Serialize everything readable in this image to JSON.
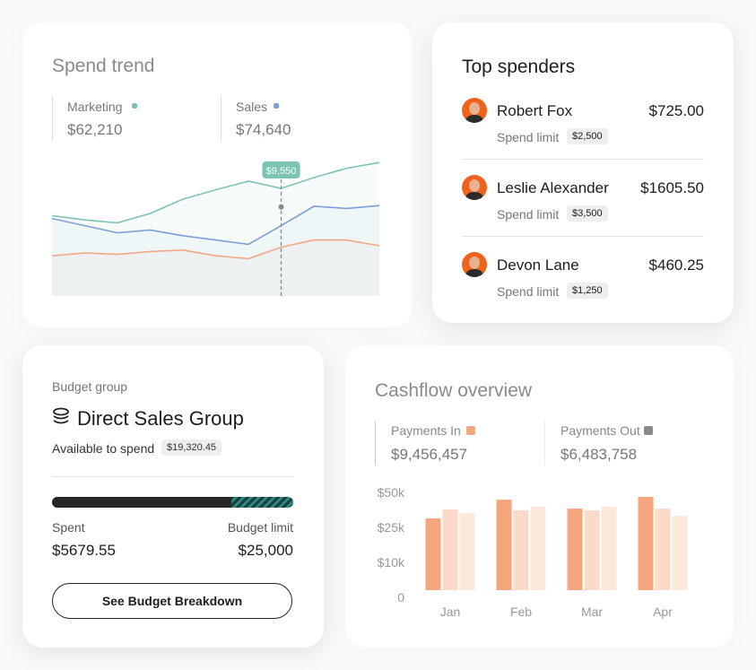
{
  "chart_data": [
    {
      "type": "line",
      "title": "Spend trend",
      "ylim": [
        0,
        100
      ],
      "series": [
        {
          "name": "Marketing",
          "total": "$62,210",
          "color": "#7cc4b2",
          "values": [
            56,
            53,
            51,
            57.5,
            67.5,
            74,
            80,
            75,
            82.5,
            89,
            93
          ]
        },
        {
          "name": "Sales",
          "total": "$74,640",
          "color": "#7c9fd6",
          "values": [
            54,
            49,
            44,
            46,
            42,
            39,
            36,
            49,
            62.5,
            61,
            63
          ]
        },
        {
          "color": "#f4a784",
          "values": [
            28,
            30,
            29,
            31,
            32,
            28,
            26,
            34,
            39,
            39,
            35
          ]
        }
      ],
      "annotations": [
        {
          "text": "$9,550",
          "x": 7
        }
      ]
    },
    {
      "type": "bar",
      "title": "Cashflow overview",
      "yscale": "tick-spaced",
      "categories": [
        "Jan",
        "Feb",
        "Mar",
        "Apr"
      ],
      "ylim": [
        0,
        50000
      ],
      "yticks": [
        0,
        {
          "value": 10000,
          "label": "$10k"
        },
        {
          "value": 25000,
          "label": "$25k"
        },
        {
          "value": 50000,
          "label": "$50k"
        }
      ],
      "series": [
        {
          "name": "Payments In",
          "total": "$9,456,457",
          "color": "#f6a67c",
          "key_color": "#f6a67c",
          "values": [
            26300,
            39700,
            33300,
            41700
          ]
        },
        {
          "name": "Payments Out",
          "total": "$6,483,758",
          "color": "#fbdac7",
          "key_color": "#8a8a8a",
          "values": [
            32700,
            32000,
            32000,
            33300
          ]
        },
        {
          "color": "#fde9dc",
          "values": [
            30100,
            34600,
            34600,
            28200
          ]
        }
      ]
    }
  ],
  "top_spenders": {
    "title": "Top spenders",
    "people": [
      {
        "name": "Robert Fox",
        "amount": "$725.00",
        "limit_label": "Spend limit",
        "limit": "$2,500"
      },
      {
        "name": "Leslie Alexander",
        "amount": "$1605.50",
        "limit_label": "Spend limit",
        "limit": "$3,500"
      },
      {
        "name": "Devon Lane",
        "amount": "$460.25",
        "limit_label": "Spend limit",
        "limit": "$1,250"
      }
    ]
  },
  "budget": {
    "label": "Budget group",
    "title": "Direct Sales Group",
    "available_label": "Available to spend",
    "available": "$19,320.45",
    "spent_label": "Spent",
    "spent": "$5679.55",
    "limit_label": "Budget limit",
    "limit": "$25,000",
    "button": "See Budget Breakdown"
  }
}
